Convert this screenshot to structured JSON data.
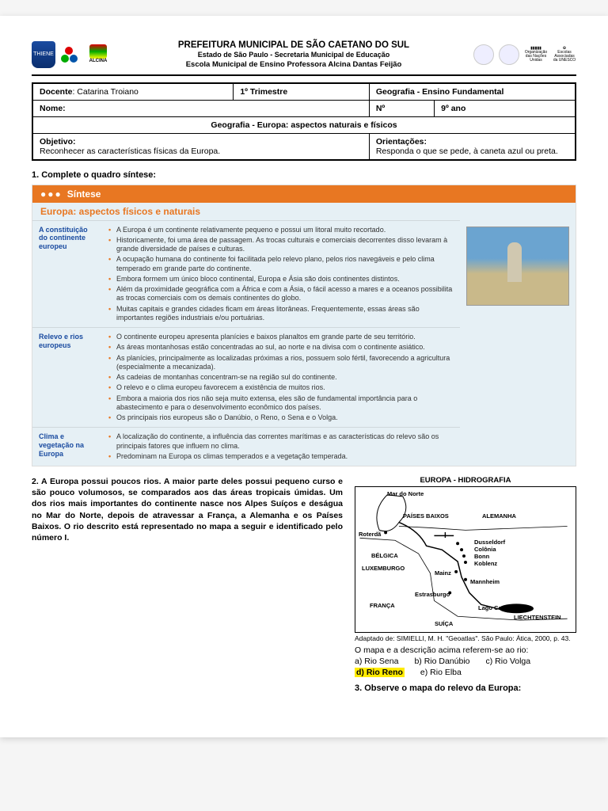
{
  "header": {
    "line1": "PREFEITURA MUNICIPAL DE SÃO CAETANO DO SUL",
    "line2": "Estado de São Paulo - Secretaria Municipal de Educação",
    "line3": "Escola Municipal de Ensino Professora Alcina Dantas Feijão",
    "alcina": "ALCINA"
  },
  "info": {
    "docente_label": "Docente",
    "docente_value": ": Catarina Troiano",
    "periodo": "1º Trimestre",
    "materia": "Geografia - Ensino Fundamental",
    "nome_label": "Nome:",
    "num_label": "Nº",
    "ano": "9º ano",
    "form_title": "Geografia - Europa: aspectos naturais e físicos",
    "objetivo_label": "Objetivo:",
    "objetivo_text": "Reconhecer as características físicas da Europa.",
    "orient_label": "Orientações:",
    "orient_text": "Responda o que se pede, à caneta azul ou preta."
  },
  "q1": "1. Complete o quadro síntese:",
  "sintese": {
    "band": "Síntese",
    "title": "Europa: aspectos físicos e naturais",
    "rows": [
      {
        "cat": "A constituição do continente europeu",
        "items": [
          "A Europa é um continente relativamente pequeno e possui um litoral muito recortado.",
          "Historicamente, foi uma área de passagem. As trocas culturais e comerciais decorrentes disso levaram à grande diversidade de países e culturas.",
          "A ocupação humana do continente foi facilitada pelo relevo plano, pelos rios navegáveis e pelo clima temperado em grande parte do continente.",
          "Embora formem um único bloco continental, Europa e Ásia são dois continentes distintos.",
          "Além da proximidade geográfica com a África e com a Ásia, o fácil acesso a mares e a oceanos possibilita as trocas comerciais com os demais continentes do globo.",
          "Muitas capitais e grandes cidades ficam em áreas litorâneas. Frequentemente, essas áreas são importantes regiões industriais e/ou portuárias."
        ]
      },
      {
        "cat": "Relevo e rios europeus",
        "items": [
          "O continente europeu apresenta planícies e baixos planaltos em grande parte de seu território.",
          "As áreas montanhosas estão concentradas ao sul, ao norte e na divisa com o continente asiático.",
          "As planícies, principalmente as localizadas próximas a rios, possuem solo fértil, favorecendo a agricultura (especialmente a mecanizada).",
          "As cadeias de montanhas concentram-se na região sul do continente.",
          "O relevo e o clima europeu favorecem a existência de muitos rios.",
          "Embora a maioria dos rios não seja muito extensa, eles são de fundamental importância para o abastecimento e para o desenvolvimento econômico dos países.",
          "Os principais rios europeus são o Danúbio, o Reno, o Sena e o Volga."
        ]
      },
      {
        "cat": "Clima e vegetação na Europa",
        "items": [
          "A localização do continente, a influência das correntes marítimas e as características do relevo são os principais fatores que influem no clima.",
          "Predominam na Europa os climas temperados e a vegetação temperada."
        ]
      }
    ]
  },
  "q2_text": "2. A Europa possui poucos rios. A maior parte deles possui pequeno curso e são pouco volumosos, se comparados aos das áreas tropicais úmidas. Um dos rios mais importantes do continente nasce nos Alpes Suíços e deságua no Mar do Norte, depois de atravessar a França, a Alemanha e os Países Baixos. O rio descrito está representado no mapa a seguir e identificado pelo número I.",
  "map": {
    "title": "EUROPA - HIDROGRAFIA",
    "labels": {
      "mar": "Mar do Norte",
      "paises": "PAÍSES BAIXOS",
      "alemanha": "ALEMANHA",
      "roterda": "Roterdã",
      "belgica": "BÉLGICA",
      "luxemburgo": "LUXEMBURGO",
      "franca": "FRANÇA",
      "suica": "SUÍÇA",
      "dusseldorf": "Dusseldorf",
      "colonia": "Colônia",
      "bonn": "Bonn",
      "koblenz": "Koblenz",
      "mainz": "Mainz",
      "mannheim": "Mannheim",
      "estrasburgo": "Estrasburgo",
      "lago": "Lago Constance",
      "liecht": "LIECHTENSTEIN",
      "marker": "I"
    },
    "credit": "Adaptado de: SIMIELLI, M. H. \"Geoatlas\". São Paulo: Ática, 2000, p. 43."
  },
  "answers": {
    "prompt": "O mapa e a descrição acima referem-se ao rio:",
    "a": "a) Rio Sena",
    "b": "b) Rio Danúbio",
    "c": "c) Rio Volga",
    "d": "d) Rio Reno",
    "e": "e) Rio Elba"
  },
  "q3": "3. Observe o mapa do relevo da Europa:"
}
